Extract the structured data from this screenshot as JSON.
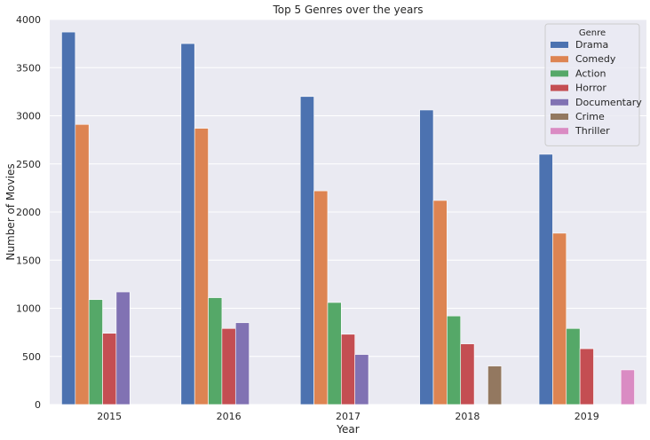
{
  "chart_data": {
    "type": "bar",
    "title": "Top 5 Genres over the years",
    "xlabel": "Year",
    "ylabel": "Number of Movies",
    "categories": [
      "2015",
      "2016",
      "2017",
      "2018",
      "2019"
    ],
    "ylim": [
      0,
      4000
    ],
    "yticks": [
      0,
      500,
      1000,
      1500,
      2000,
      2500,
      3000,
      3500,
      4000
    ],
    "grid": true,
    "legend": {
      "title": "Genre",
      "placement": "top-right"
    },
    "series": [
      {
        "name": "Drama",
        "color": "#4c72b0",
        "values": [
          3870,
          3750,
          3200,
          3060,
          2600
        ]
      },
      {
        "name": "Comedy",
        "color": "#dd8452",
        "values": [
          2910,
          2870,
          2220,
          2120,
          1780
        ]
      },
      {
        "name": "Action",
        "color": "#55a868",
        "values": [
          1090,
          1110,
          1060,
          920,
          790
        ]
      },
      {
        "name": "Horror",
        "color": "#c44e52",
        "values": [
          740,
          790,
          730,
          630,
          580
        ]
      },
      {
        "name": "Documentary",
        "color": "#8172b3",
        "values": [
          1170,
          850,
          520,
          null,
          null
        ]
      },
      {
        "name": "Crime",
        "color": "#937860",
        "values": [
          null,
          null,
          null,
          400,
          null
        ]
      },
      {
        "name": "Thriller",
        "color": "#da8bc3",
        "values": [
          null,
          null,
          null,
          null,
          360
        ]
      }
    ]
  }
}
